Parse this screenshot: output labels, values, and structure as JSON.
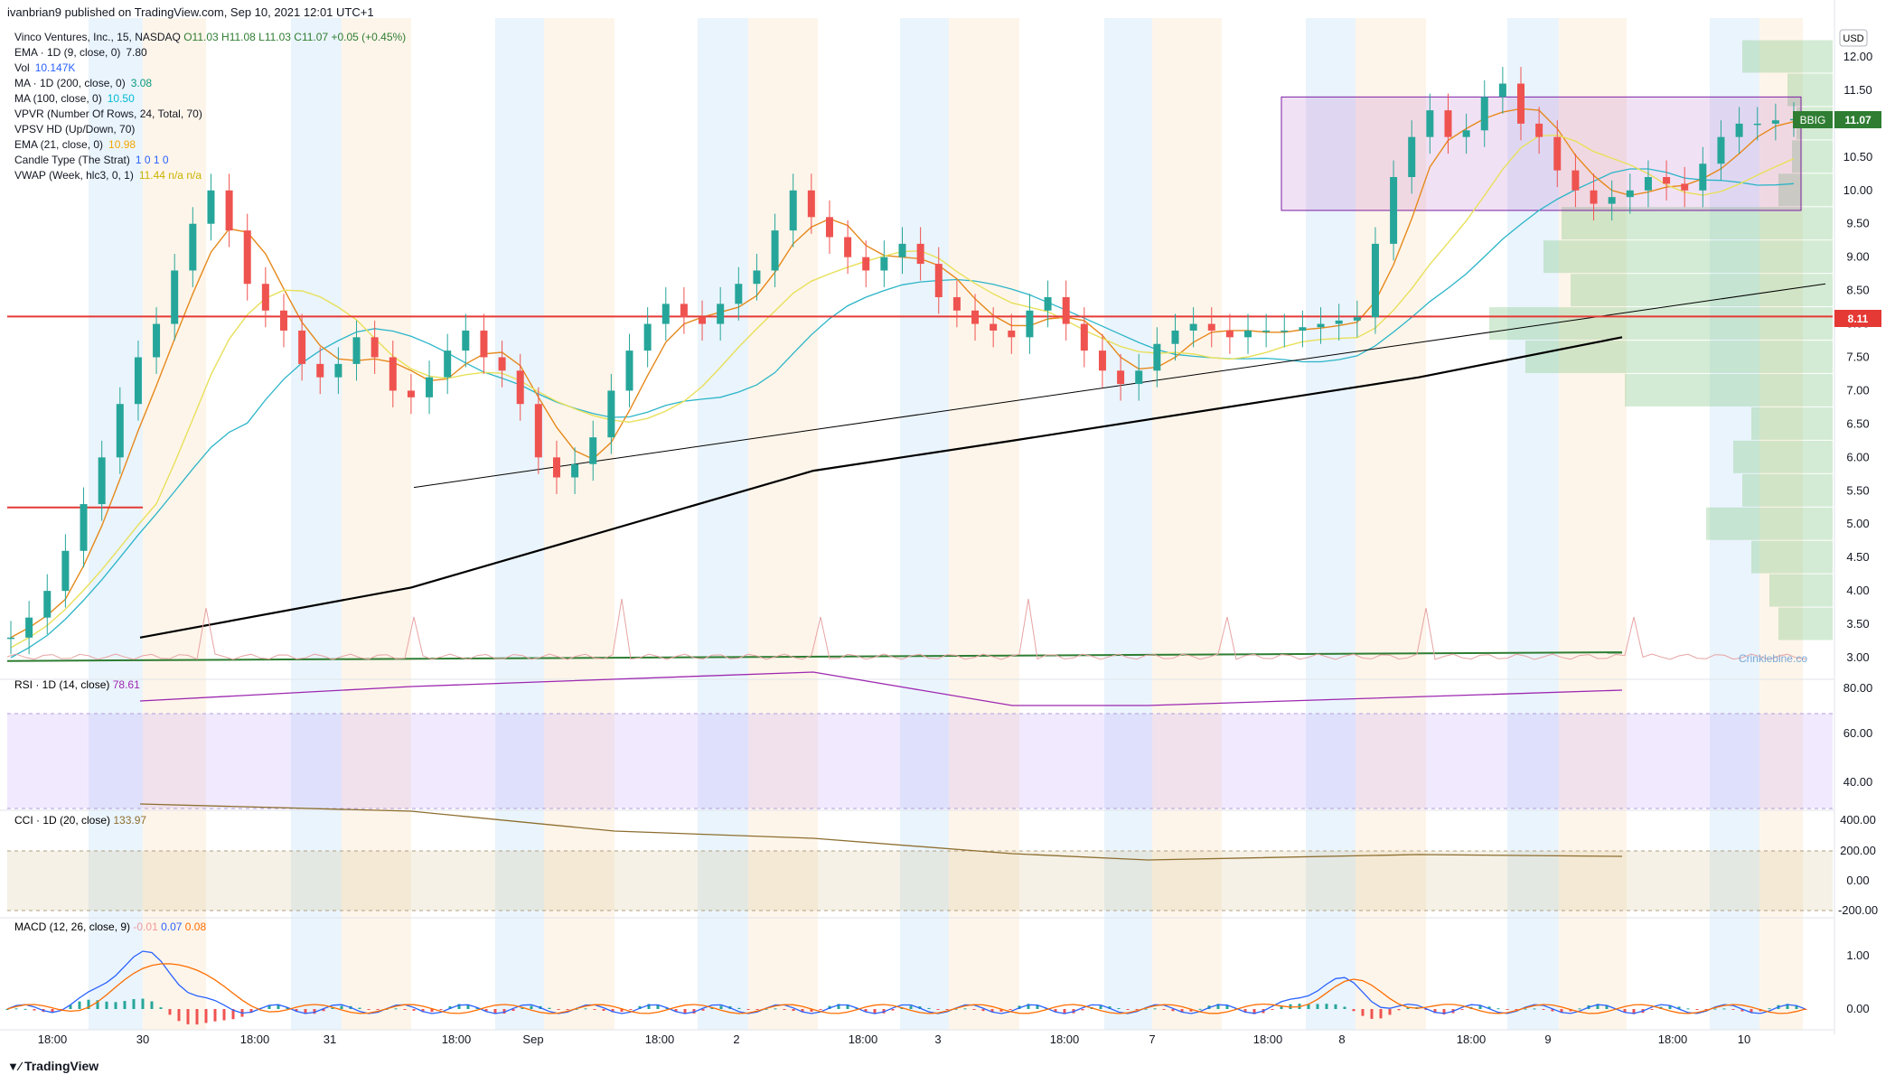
{
  "header": {
    "publish_line": "ivanbrian9 published on TradingView.com, Sep 10, 2021 12:01 UTC+1"
  },
  "legend": {
    "symbol": "Vinco Ventures, Inc., 15, NASDAQ",
    "ohlc": "O11.03 H11.08 L11.03 C11.07 +0.05 (+0.45%)",
    "lines": [
      {
        "label": "EMA · 1D (9, close, 0)",
        "value": "7.80",
        "color": "#131722"
      },
      {
        "label": "Vol",
        "value": "10.147K",
        "color": "#2962ff"
      },
      {
        "label": "MA · 1D (200, close, 0)",
        "value": "3.08",
        "color": "#089981"
      },
      {
        "label": "MA (100, close, 0)",
        "value": "10.50",
        "color": "#00bcd4"
      },
      {
        "label": "VPVR (Number Of Rows, 24, Total, 70)",
        "value": "",
        "color": "#131722"
      },
      {
        "label": "VPSV HD (Up/Down, 70)",
        "value": "",
        "color": "#131722"
      },
      {
        "label": "EMA (21, close, 0)",
        "value": "10.98",
        "color": "#f7a600"
      },
      {
        "label": "Candle Type (The Strat)",
        "value": "1 0 1 0",
        "color": "#2962ff"
      },
      {
        "label": "VWAP (Week, hlc3, 0, 1)",
        "value": "11.44 n/a n/a",
        "color": "#c9b300"
      }
    ]
  },
  "price_axis": {
    "currency": "USD",
    "ticks": [
      "12.00",
      "11.50",
      "11.00",
      "10.50",
      "10.00",
      "9.50",
      "9.00",
      "8.50",
      "8.00",
      "7.50",
      "7.00",
      "6.50",
      "6.00",
      "5.50",
      "5.00",
      "4.50",
      "4.00",
      "3.50",
      "3.00"
    ],
    "ticker_badge": "BBIG",
    "last_price": "11.07",
    "line_price": "8.11",
    "last_color": "#2e7d32",
    "line_color": "#e53935"
  },
  "time_axis": {
    "labels": [
      "18:00",
      "30",
      "18:00",
      "31",
      "18:00",
      "Sep",
      "18:00",
      "2",
      "18:00",
      "3",
      "18:00",
      "7",
      "18:00",
      "8",
      "18:00",
      "9",
      "18:00",
      "10"
    ]
  },
  "panes": {
    "rsi": {
      "label": "RSI · 1D (14, close)",
      "value": "78.61",
      "ticks": [
        "80.00",
        "60.00",
        "40.00"
      ],
      "color": "#9c27b0"
    },
    "cci": {
      "label": "CCI · 1D (20, close)",
      "value": "133.97",
      "ticks": [
        "400.00",
        "200.00",
        "0.00",
        "-200.00"
      ],
      "color": "#8d6e2f"
    },
    "macd": {
      "label": "MACD (12, 26, close, 9)",
      "v1": "-0.01",
      "v2": "0.07",
      "v3": "0.08",
      "ticks": [
        "1.00",
        "0.00"
      ]
    }
  },
  "watermark": "Crinklebine.co",
  "footer": {
    "logo": "TradingView"
  },
  "chart_data": {
    "type": "candlestick",
    "ylim": [
      2.8,
      12.3
    ],
    "series": [
      {
        "name": "BBIG",
        "close_path": [
          3.3,
          3.6,
          4.0,
          4.6,
          5.3,
          6.0,
          6.8,
          7.5,
          8.0,
          8.8,
          9.5,
          10.0,
          9.4,
          8.6,
          8.2,
          7.9,
          7.4,
          7.2,
          7.4,
          7.8,
          7.5,
          7.0,
          6.9,
          7.2,
          7.6,
          7.9,
          7.5,
          7.3,
          6.8,
          6.0,
          5.7,
          5.9,
          6.3,
          7.0,
          7.6,
          8.0,
          8.3,
          8.1,
          8.0,
          8.3,
          8.6,
          8.8,
          9.4,
          10.0,
          9.6,
          9.3,
          9.0,
          8.8,
          9.0,
          9.2,
          8.9,
          8.4,
          8.2,
          8.0,
          7.9,
          7.8,
          8.2,
          8.4,
          8.0,
          7.6,
          7.3,
          7.1,
          7.3,
          7.7,
          7.9,
          8.0,
          7.9,
          7.8,
          7.9,
          7.9,
          7.9,
          7.95,
          8.0,
          8.05,
          8.1,
          9.2,
          10.2,
          10.8,
          11.2,
          10.8,
          10.9,
          11.4,
          11.6,
          11.0,
          10.8,
          10.3,
          10.0,
          9.8,
          9.9,
          10.0,
          10.2,
          10.1,
          10.0,
          10.4,
          10.8,
          11.0,
          11.0,
          11.05,
          11.07
        ]
      }
    ],
    "horizontal_levels": [
      8.11,
      5.25
    ],
    "box_range": [
      9.7,
      11.4
    ]
  }
}
